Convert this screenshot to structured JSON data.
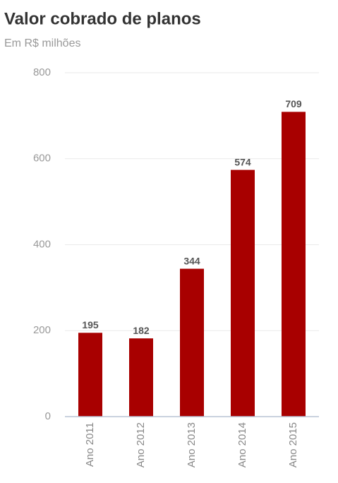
{
  "chart_data": {
    "type": "bar",
    "title": "Valor cobrado de planos",
    "subtitle": "Em R$ milhões",
    "categories": [
      "Ano 2011",
      "Ano 2012",
      "Ano 2013",
      "Ano 2014",
      "Ano 2015"
    ],
    "values": [
      195,
      182,
      344,
      574,
      709
    ],
    "color": "#a80000",
    "ylim": [
      0,
      800
    ],
    "yticks": [
      0,
      200,
      400,
      600,
      800
    ],
    "grid": true
  }
}
